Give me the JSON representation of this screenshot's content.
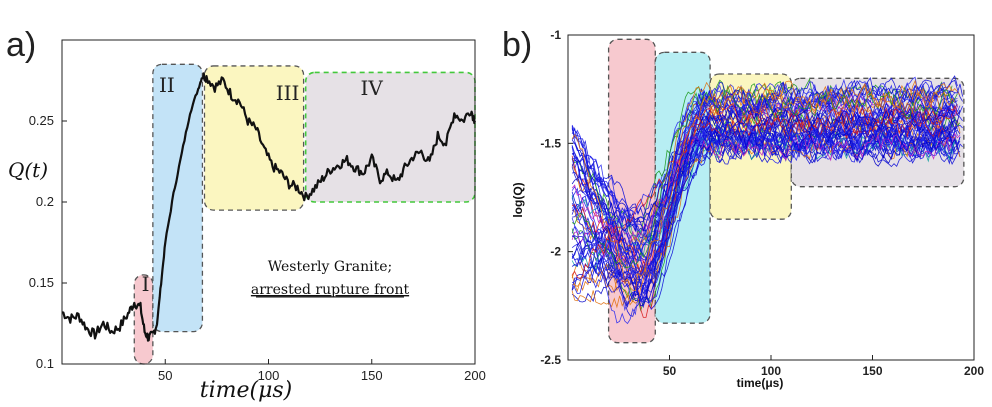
{
  "figure": {
    "panel_a_letter": "a)",
    "panel_b_letter": "b)"
  },
  "chart_data": [
    {
      "type": "line",
      "panel": "a",
      "xlabel": "time(μs)",
      "ylabel": "Q(t)",
      "xlim": [
        0,
        200
      ],
      "ylim": [
        0.1,
        0.3
      ],
      "xticks": [
        "50",
        "100",
        "150",
        "200"
      ],
      "yticks": [
        "0.1",
        "0.15",
        "0.2",
        "0.25"
      ],
      "annotation_line1": "Westerly Granite;",
      "annotation_line2": "arrested rupture front",
      "line_color": "#111111",
      "series": [
        {
          "x": [
            0,
            4,
            8,
            12,
            16,
            20,
            24,
            28,
            32,
            35,
            38,
            40,
            42,
            44,
            46,
            48,
            50,
            54,
            58,
            62,
            66,
            68,
            70,
            74,
            78,
            82,
            86,
            90,
            94,
            98,
            102,
            106,
            110,
            114,
            118,
            122,
            126,
            130,
            134,
            138,
            142,
            146,
            150,
            154,
            158,
            162,
            166,
            170,
            174,
            178,
            182,
            186,
            190,
            194,
            198,
            200
          ],
          "y": [
            0.132,
            0.128,
            0.13,
            0.122,
            0.118,
            0.125,
            0.12,
            0.123,
            0.131,
            0.138,
            0.135,
            0.12,
            0.116,
            0.118,
            0.125,
            0.15,
            0.175,
            0.205,
            0.23,
            0.255,
            0.27,
            0.278,
            0.277,
            0.271,
            0.275,
            0.266,
            0.262,
            0.25,
            0.245,
            0.232,
            0.222,
            0.218,
            0.211,
            0.209,
            0.203,
            0.208,
            0.214,
            0.22,
            0.223,
            0.226,
            0.221,
            0.218,
            0.227,
            0.214,
            0.218,
            0.212,
            0.221,
            0.228,
            0.231,
            0.224,
            0.241,
            0.236,
            0.255,
            0.25,
            0.257,
            0.25
          ]
        }
      ],
      "regions": [
        {
          "label": "I",
          "x0": 35,
          "x1": 44,
          "y0": 0.1,
          "y1": 0.155,
          "fill": "#f7c9cf",
          "stroke": "#555555"
        },
        {
          "label": "II",
          "x0": 44,
          "x1": 68,
          "y0": 0.12,
          "y1": 0.285,
          "fill": "#c3e3f7",
          "stroke": "#555555"
        },
        {
          "label": "III",
          "x0": 69,
          "x1": 117,
          "y0": 0.195,
          "y1": 0.284,
          "fill": "#fbf6c0",
          "stroke": "#555555"
        },
        {
          "label": "IV",
          "x0": 118,
          "x1": 200,
          "y0": 0.2,
          "y1": 0.28,
          "fill": "#e6e1e6",
          "stroke": "#44c83c"
        }
      ]
    },
    {
      "type": "line",
      "panel": "b",
      "xlabel": "time(μs)",
      "ylabel": "log(Q)",
      "xlim": [
        0,
        200
      ],
      "ylim": [
        -2.5,
        -1
      ],
      "xticks": [
        "50",
        "100",
        "150",
        "200"
      ],
      "yticks": [
        "-1",
        "-1.5",
        "-2",
        "-2.5"
      ],
      "trace_colors": [
        "#1010d8",
        "#1a1ae6",
        "#0000c8",
        "#2a2af0",
        "#d81b1b",
        "#1e9a1e",
        "#c020c0",
        "#e07010",
        "#10a0a0"
      ],
      "baseline_level": -1.4,
      "dip_level": -2.05,
      "dip_time": 32,
      "rise_end_time": 68,
      "regions": [
        {
          "x0": 20,
          "x1": 43,
          "y0": -2.42,
          "y1": -1.02,
          "fill": "#f7c9cf",
          "stroke": "#555555"
        },
        {
          "x0": 43,
          "x1": 70,
          "y0": -2.33,
          "y1": -1.08,
          "fill": "#b7eef3",
          "stroke": "#555555"
        },
        {
          "x0": 70,
          "x1": 110,
          "y0": -1.85,
          "y1": -1.18,
          "fill": "#fbf6c0",
          "stroke": "#555555"
        },
        {
          "x0": 110,
          "x1": 195,
          "y0": -1.7,
          "y1": -1.2,
          "fill": "#e6e1e6",
          "stroke": "#555555"
        }
      ]
    }
  ]
}
